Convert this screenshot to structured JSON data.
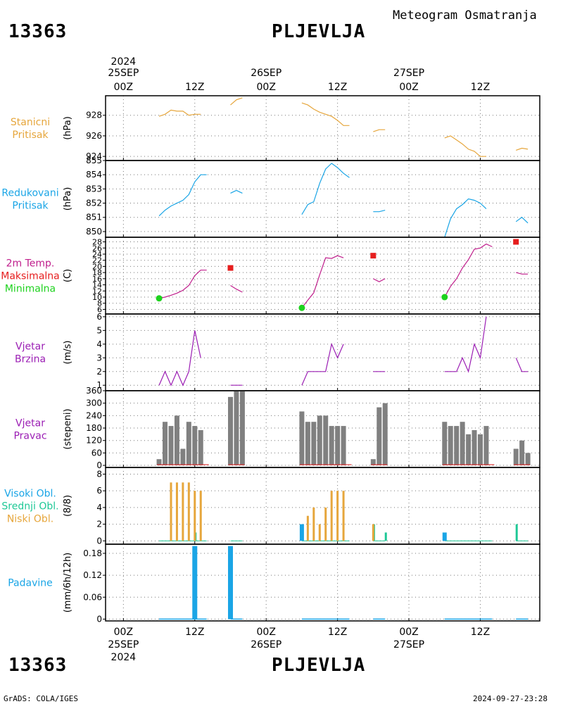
{
  "header": {
    "station_id": "13363",
    "station_name": "PLJEVLJA",
    "product": "Meteogram Osmatranja"
  },
  "footer": {
    "station_id": "13363",
    "station_name": "PLJEVLJA",
    "software": "GrADS: COLA/IGES",
    "timestamp": "2024-09-27-23:28"
  },
  "time_axis": {
    "top_year": "2024",
    "bottom_year": "2024",
    "ticks": [
      {
        "hour": 0,
        "label": "00Z",
        "date": "25SEP"
      },
      {
        "hour": 12,
        "label": "12Z",
        "date": ""
      },
      {
        "hour": 24,
        "label": "00Z",
        "date": "26SEP"
      },
      {
        "hour": 36,
        "label": "12Z",
        "date": ""
      },
      {
        "hour": 48,
        "label": "00Z",
        "date": "27SEP"
      },
      {
        "hour": 60,
        "label": "12Z",
        "date": ""
      }
    ],
    "range_hours": [
      -3,
      70
    ]
  },
  "colors": {
    "station_pressure": "#e6a63c",
    "reduced_pressure": "#1aa5e6",
    "temp_line": "#c01e8c",
    "temp_max": "#e61e1e",
    "temp_min": "#1ed21e",
    "wind_speed": "#9b1eb4",
    "wind_dir_bar": "#808080",
    "wind_dir_base": "#e63232",
    "cloud_high": "#1aa5e6",
    "cloud_mid": "#1ec896",
    "cloud_low": "#e6a63c",
    "precip": "#1aa5e6"
  },
  "chart_data": [
    {
      "type": "line",
      "panel": "station_pressure",
      "label_lines": [
        "Stanicni",
        "Pritisak"
      ],
      "ylabel": "(hPa)",
      "ylim": [
        923.6,
        929.9
      ],
      "yticks": [
        924,
        926,
        928
      ],
      "series": [
        {
          "segments": [
            [
              [
                6,
                927.9
              ],
              [
                7,
                928.1
              ],
              [
                8,
                928.5
              ],
              [
                9,
                928.4
              ],
              [
                10,
                928.4
              ],
              [
                11,
                928.0
              ],
              [
                12,
                928.1
              ],
              [
                13,
                928.1
              ]
            ],
            [
              [
                18,
                929.0
              ],
              [
                19,
                929.5
              ],
              [
                20,
                929.7
              ]
            ],
            [
              [
                30,
                929.2
              ],
              [
                31,
                929.0
              ],
              [
                32,
                928.6
              ],
              [
                33,
                928.3
              ],
              [
                34,
                928.1
              ],
              [
                35,
                927.9
              ],
              [
                36,
                927.5
              ],
              [
                37,
                927.0
              ],
              [
                38,
                927.0
              ]
            ],
            [
              [
                42,
                926.4
              ],
              [
                43,
                926.6
              ],
              [
                44,
                926.6
              ]
            ],
            [
              [
                54,
                925.8
              ],
              [
                55,
                926.0
              ],
              [
                56,
                925.6
              ],
              [
                57,
                925.2
              ],
              [
                58,
                924.7
              ],
              [
                59,
                924.5
              ],
              [
                60,
                924.0
              ],
              [
                61,
                924.0
              ]
            ],
            [
              [
                66,
                924.6
              ],
              [
                67,
                924.8
              ],
              [
                68,
                924.7
              ]
            ]
          ]
        }
      ]
    },
    {
      "type": "line",
      "panel": "reduced_pressure",
      "label_lines": [
        "Redukovani",
        "Pritisak"
      ],
      "ylabel": "(hPa)",
      "ylim": [
        849.6,
        855.0
      ],
      "yticks": [
        850,
        851,
        852,
        853,
        854,
        855
      ],
      "series": [
        {
          "segments": [
            [
              [
                6,
                851.1
              ],
              [
                7,
                851.5
              ],
              [
                8,
                851.8
              ],
              [
                9,
                852.0
              ],
              [
                10,
                852.2
              ],
              [
                11,
                852.6
              ],
              [
                12,
                853.5
              ],
              [
                13,
                854.0
              ],
              [
                14,
                854.0
              ]
            ],
            [
              [
                18,
                852.7
              ],
              [
                19,
                852.9
              ],
              [
                20,
                852.7
              ]
            ],
            [
              [
                30,
                851.2
              ],
              [
                31,
                851.9
              ],
              [
                32,
                852.1
              ],
              [
                33,
                853.4
              ],
              [
                34,
                854.4
              ],
              [
                35,
                854.8
              ],
              [
                36,
                854.5
              ],
              [
                37,
                854.1
              ],
              [
                38,
                853.8
              ]
            ],
            [
              [
                42,
                851.4
              ],
              [
                43,
                851.4
              ],
              [
                44,
                851.5
              ]
            ],
            [
              [
                54,
                849.6
              ],
              [
                55,
                850.9
              ],
              [
                56,
                851.6
              ],
              [
                57,
                851.9
              ],
              [
                58,
                852.3
              ],
              [
                59,
                852.2
              ],
              [
                60,
                852.0
              ],
              [
                61,
                851.6
              ]
            ],
            [
              [
                66,
                850.7
              ],
              [
                67,
                851.0
              ],
              [
                68,
                850.6
              ]
            ]
          ]
        }
      ]
    },
    {
      "type": "line",
      "panel": "temperature",
      "label_lines": [
        "2m Temp.",
        "Maksimalna",
        "Minimalna"
      ],
      "ylabel": "(C)",
      "ylim": [
        4.5,
        29.5
      ],
      "yticks": [
        6,
        8,
        10,
        12,
        14,
        16,
        18,
        20,
        22,
        24,
        26,
        28
      ],
      "series": [
        {
          "name": "2m Temp.",
          "segments": [
            [
              [
                6,
                9.6
              ],
              [
                7,
                10.0
              ],
              [
                8,
                10.6
              ],
              [
                9,
                11.3
              ],
              [
                10,
                12.2
              ],
              [
                11,
                13.8
              ],
              [
                12,
                17.0
              ],
              [
                13,
                18.8
              ],
              [
                14,
                18.8
              ]
            ],
            [
              [
                18,
                13.8
              ],
              [
                19,
                12.6
              ],
              [
                20,
                11.6
              ]
            ],
            [
              [
                30,
                6.5
              ],
              [
                31,
                9.0
              ],
              [
                32,
                11.4
              ],
              [
                33,
                17.3
              ],
              [
                34,
                22.8
              ],
              [
                35,
                22.6
              ],
              [
                36,
                23.5
              ],
              [
                37,
                22.8
              ]
            ],
            [
              [
                42,
                16.0
              ],
              [
                43,
                15.0
              ],
              [
                44,
                16.0
              ]
            ],
            [
              [
                54,
                10.0
              ],
              [
                55,
                13.5
              ],
              [
                56,
                16.0
              ],
              [
                57,
                19.5
              ],
              [
                58,
                22.2
              ],
              [
                59,
                25.6
              ],
              [
                60,
                26.0
              ],
              [
                61,
                27.3
              ],
              [
                62,
                26.4
              ]
            ],
            [
              [
                66,
                18.0
              ],
              [
                67,
                17.5
              ],
              [
                68,
                17.5
              ]
            ]
          ]
        },
        {
          "name": "Maksimalna",
          "points": [
            [
              18,
              19.5
            ],
            [
              42,
              23.5
            ],
            [
              66,
              28.0
            ]
          ]
        },
        {
          "name": "Minimalna",
          "points": [
            [
              6,
              9.6
            ],
            [
              30,
              6.5
            ],
            [
              54,
              10.0
            ]
          ]
        }
      ]
    },
    {
      "type": "line",
      "panel": "wind_speed",
      "label_lines": [
        "Vjetar",
        "Brzina"
      ],
      "ylabel": "(m/s)",
      "ylim": [
        0.6,
        6.2
      ],
      "yticks": [
        1,
        2,
        3,
        4,
        5,
        6
      ],
      "series": [
        {
          "segments": [
            [
              [
                6,
                1.0
              ],
              [
                7,
                2.0
              ],
              [
                8,
                1.0
              ],
              [
                9,
                2.0
              ],
              [
                10,
                1.0
              ],
              [
                11,
                2.0
              ],
              [
                12,
                5.0
              ],
              [
                13,
                3.0
              ]
            ],
            [
              [
                18,
                1.0
              ],
              [
                19,
                1.0
              ],
              [
                20,
                1.0
              ]
            ],
            [
              [
                30,
                1.0
              ],
              [
                31,
                2.0
              ],
              [
                32,
                2.0
              ],
              [
                33,
                2.0
              ],
              [
                34,
                2.0
              ],
              [
                35,
                4.0
              ],
              [
                36,
                3.0
              ],
              [
                37,
                4.0
              ]
            ],
            [
              [
                42,
                2.0
              ],
              [
                43,
                2.0
              ],
              [
                44,
                2.0
              ]
            ],
            [
              [
                54,
                2.0
              ],
              [
                55,
                2.0
              ],
              [
                56,
                2.0
              ],
              [
                57,
                3.0
              ],
              [
                58,
                2.0
              ],
              [
                59,
                4.0
              ],
              [
                60,
                3.0
              ],
              [
                61,
                6.0
              ]
            ],
            [
              [
                66,
                3.0
              ],
              [
                67,
                2.0
              ],
              [
                68,
                2.0
              ]
            ]
          ]
        }
      ]
    },
    {
      "type": "bar",
      "panel": "wind_direction",
      "label_lines": [
        "Vjetar",
        "Pravac"
      ],
      "ylabel": "(stepeni)",
      "ylim": [
        -10,
        360
      ],
      "yticks": [
        0,
        60,
        120,
        180,
        240,
        300,
        360
      ],
      "x": [
        6,
        7,
        8,
        9,
        10,
        11,
        12,
        13,
        18,
        19,
        20,
        30,
        31,
        32,
        33,
        34,
        35,
        36,
        37,
        42,
        43,
        44,
        54,
        55,
        56,
        57,
        58,
        59,
        60,
        61,
        66,
        67,
        68
      ],
      "values": [
        30,
        210,
        190,
        240,
        80,
        210,
        190,
        170,
        330,
        360,
        360,
        260,
        210,
        210,
        240,
        240,
        190,
        190,
        190,
        30,
        280,
        300,
        210,
        190,
        190,
        210,
        150,
        170,
        150,
        190,
        80,
        120,
        60
      ]
    },
    {
      "type": "bar",
      "panel": "clouds",
      "label_lines": [
        "Visoki Obl.",
        "Srednji Obl.",
        "Niski Obl."
      ],
      "ylabel": "(8/8)",
      "ylim": [
        -0.4,
        8.8
      ],
      "yticks": [
        0,
        2,
        4,
        6,
        8
      ],
      "series": [
        {
          "name": "Visoki Obl.",
          "x": [
            30,
            54
          ],
          "values": [
            2,
            1
          ]
        },
        {
          "name": "Srednji Obl.",
          "x": [
            12,
            42,
            44,
            66
          ],
          "values": [
            1,
            2,
            1,
            2
          ]
        },
        {
          "name": "Niski Obl.",
          "x": [
            8,
            9,
            10,
            11,
            12,
            13,
            31,
            32,
            33,
            34,
            35,
            36,
            37,
            42
          ],
          "values": [
            7,
            7,
            7,
            7,
            6,
            6,
            3,
            4,
            2,
            4,
            6,
            6,
            6,
            2
          ]
        }
      ],
      "trace_segments": [
        [
          6,
          14
        ],
        [
          18,
          20
        ],
        [
          30,
          38
        ],
        [
          42,
          44
        ],
        [
          54,
          62
        ],
        [
          66,
          68
        ]
      ]
    },
    {
      "type": "bar",
      "panel": "precipitation",
      "label_lines": [
        "Padavine"
      ],
      "ylabel": "(mm/6h/12h)",
      "ylim": [
        -0.005,
        0.205
      ],
      "yticks": [
        0,
        0.06,
        0.12,
        0.18
      ],
      "ytick_labels": [
        "0",
        "0.06",
        "0.12",
        "0.18"
      ],
      "x": [
        12,
        18
      ],
      "values": [
        0.2,
        0.2
      ],
      "trace_segments": [
        [
          6,
          14
        ],
        [
          18,
          20
        ],
        [
          30,
          38
        ],
        [
          42,
          44
        ],
        [
          54,
          62
        ],
        [
          66,
          68
        ]
      ]
    }
  ]
}
